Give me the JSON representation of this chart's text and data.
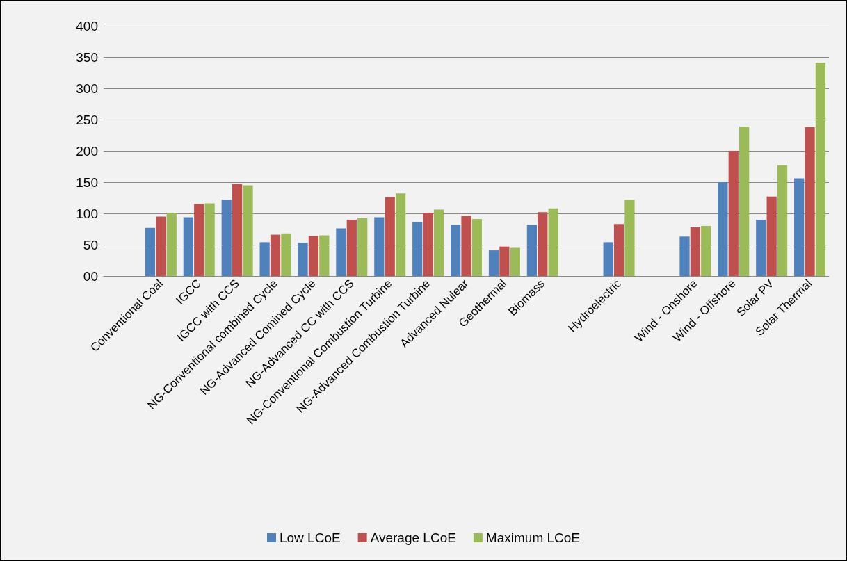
{
  "chart_data": {
    "type": "bar",
    "categories": [
      null,
      "Conventional Coal",
      "IGCC",
      "IGCC with CCS",
      "NG-Conventional combined Cycle",
      "NG-Advanced Comined Cycle",
      "NG-Advanced CC with CCS",
      "NG-Conventional Combustion Turbine",
      "NG-Advanced Combustion Turbine",
      "Advanced Nulear",
      "Geothermal",
      "Biomass",
      null,
      "Hydroelectric",
      null,
      "Wind - Onshore",
      "Wind - Offshore",
      "Solar PV",
      "Solar Thermal"
    ],
    "series": [
      {
        "name": "Low LCoE",
        "color": "#4f81bd",
        "values": [
          null,
          77,
          94,
          122,
          54,
          53,
          76,
          94,
          86,
          82,
          41,
          82,
          null,
          54,
          null,
          63,
          150,
          90,
          156
        ]
      },
      {
        "name": "Average LCoE",
        "color": "#c0504d",
        "values": [
          null,
          95,
          115,
          147,
          66,
          64,
          90,
          126,
          101,
          96,
          47,
          102,
          null,
          83,
          null,
          78,
          200,
          127,
          238
        ]
      },
      {
        "name": "Maximum LCoE",
        "color": "#9bbb59",
        "values": [
          null,
          101,
          116,
          145,
          68,
          65,
          93,
          132,
          106,
          91,
          45,
          108,
          null,
          122,
          null,
          80,
          239,
          177,
          341
        ]
      }
    ],
    "ylim": [
      0,
      400
    ],
    "yticks": [
      {
        "value": 0,
        "label": "00"
      },
      50,
      100,
      150,
      200,
      250,
      300,
      350,
      400
    ],
    "grid": "y",
    "legend": "bottom"
  }
}
